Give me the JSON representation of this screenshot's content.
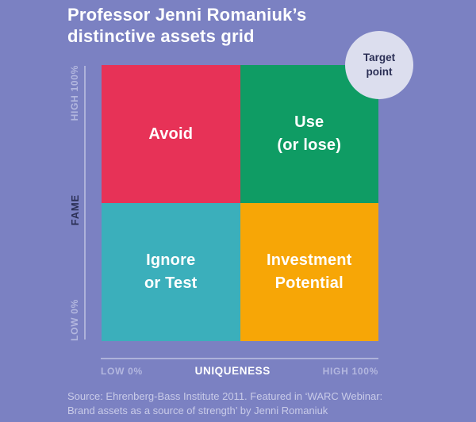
{
  "header": {
    "title_display": "Professor Jenni Romaniuk’s\ndistinctive assets grid"
  },
  "badge": {
    "label": "Target\npoint",
    "background": "#dcdeee",
    "text_color": "#2b2f55"
  },
  "chart_data": {
    "type": "heatmap",
    "title": "Professor Jenni Romaniuk’s distinctive assets grid",
    "x_axis": {
      "label": "UNIQUENESS",
      "min_label": "LOW 0%",
      "max_label": "HIGH 100%"
    },
    "y_axis": {
      "label": "FAME",
      "min_label": "LOW 0%",
      "max_label": "HIGH 100%"
    },
    "quadrants": [
      {
        "position": "top-left",
        "fame": "HIGH",
        "uniqueness": "LOW",
        "label": "Avoid",
        "color": "#e73257"
      },
      {
        "position": "top-right",
        "fame": "HIGH",
        "uniqueness": "HIGH",
        "label": "Use\n(or lose)",
        "color": "#0f9c64"
      },
      {
        "position": "bottom-left",
        "fame": "LOW",
        "uniqueness": "LOW",
        "label": "Ignore\nor Test",
        "color": "#3bafbb"
      },
      {
        "position": "bottom-right",
        "fame": "LOW",
        "uniqueness": "HIGH",
        "label": "Investment\nPotential",
        "color": "#f7a606"
      }
    ],
    "annotation": {
      "label": "Target point",
      "location": "top-right corner (high fame, high uniqueness)"
    },
    "legend_position": "none",
    "grid": "off"
  },
  "source_note": "Source: Ehrenberg-Bass Institute 2011. Featured in ‘WARC Webinar:\nBrand assets as a source of strength’ by Jenni Romaniuk",
  "colors": {
    "page_background": "#7b81c2",
    "axis_line": "#aeb2da",
    "tick_label": "#b3b7df",
    "dark_navy": "#2b2f55",
    "title_text": "#ffffff"
  }
}
